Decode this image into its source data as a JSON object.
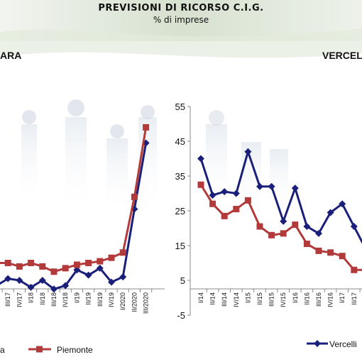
{
  "header": {
    "title": "PREVISIONI DI RICORSO C.I.G.",
    "subtitle": "% di imprese"
  },
  "colors": {
    "navy": "#1a1f7a",
    "red": "#b23a3a"
  },
  "chart_data": [
    {
      "type": "line",
      "title": "ARA",
      "categories": [
        "II/17",
        "III/17",
        "IV/17",
        "I/18",
        "II/18",
        "III/18",
        "IV/18",
        "I/19",
        "II/19",
        "III/19",
        "IV/19",
        "I/2020",
        "II/2020",
        "III/2020"
      ],
      "series": [
        {
          "name": "ra",
          "values": [
            3.5,
            5.5,
            5.0,
            3.0,
            5.0,
            2.5,
            3.5,
            8.0,
            6.5,
            8.5,
            4.5,
            6.0,
            25.5,
            44.5
          ]
        },
        {
          "name": "Piemonte",
          "values": [
            10.0,
            10.0,
            9.0,
            10.0,
            9.0,
            7.5,
            8.5,
            9.5,
            10.0,
            10.5,
            11.5,
            13.0,
            29.0,
            49.0
          ]
        }
      ],
      "legend": "bottom"
    },
    {
      "type": "line",
      "title": "VERCELL",
      "categories": [
        "I/14",
        "II/14",
        "III/14",
        "IV/14",
        "I/15",
        "II/15",
        "III/15",
        "IV/15",
        "I/16",
        "II/16",
        "III/16",
        "IV/16",
        "I/17",
        "II/17",
        "III/17"
      ],
      "ylim": [
        -5,
        55
      ],
      "yticks": [
        "55",
        "45",
        "35",
        "25",
        "15",
        "5",
        "-5"
      ],
      "series": [
        {
          "name": "Vercelli",
          "values": [
            40,
            29.5,
            30.5,
            30,
            42,
            32,
            32,
            22,
            31.5,
            20.5,
            18.5,
            24.5,
            27,
            20.5,
            14
          ]
        },
        {
          "name": "",
          "values": [
            32.5,
            27,
            23.5,
            25.5,
            28,
            20.5,
            18,
            18.5,
            21,
            15.5,
            13.5,
            13,
            12,
            8,
            8
          ]
        }
      ],
      "legend": "bottom"
    }
  ]
}
